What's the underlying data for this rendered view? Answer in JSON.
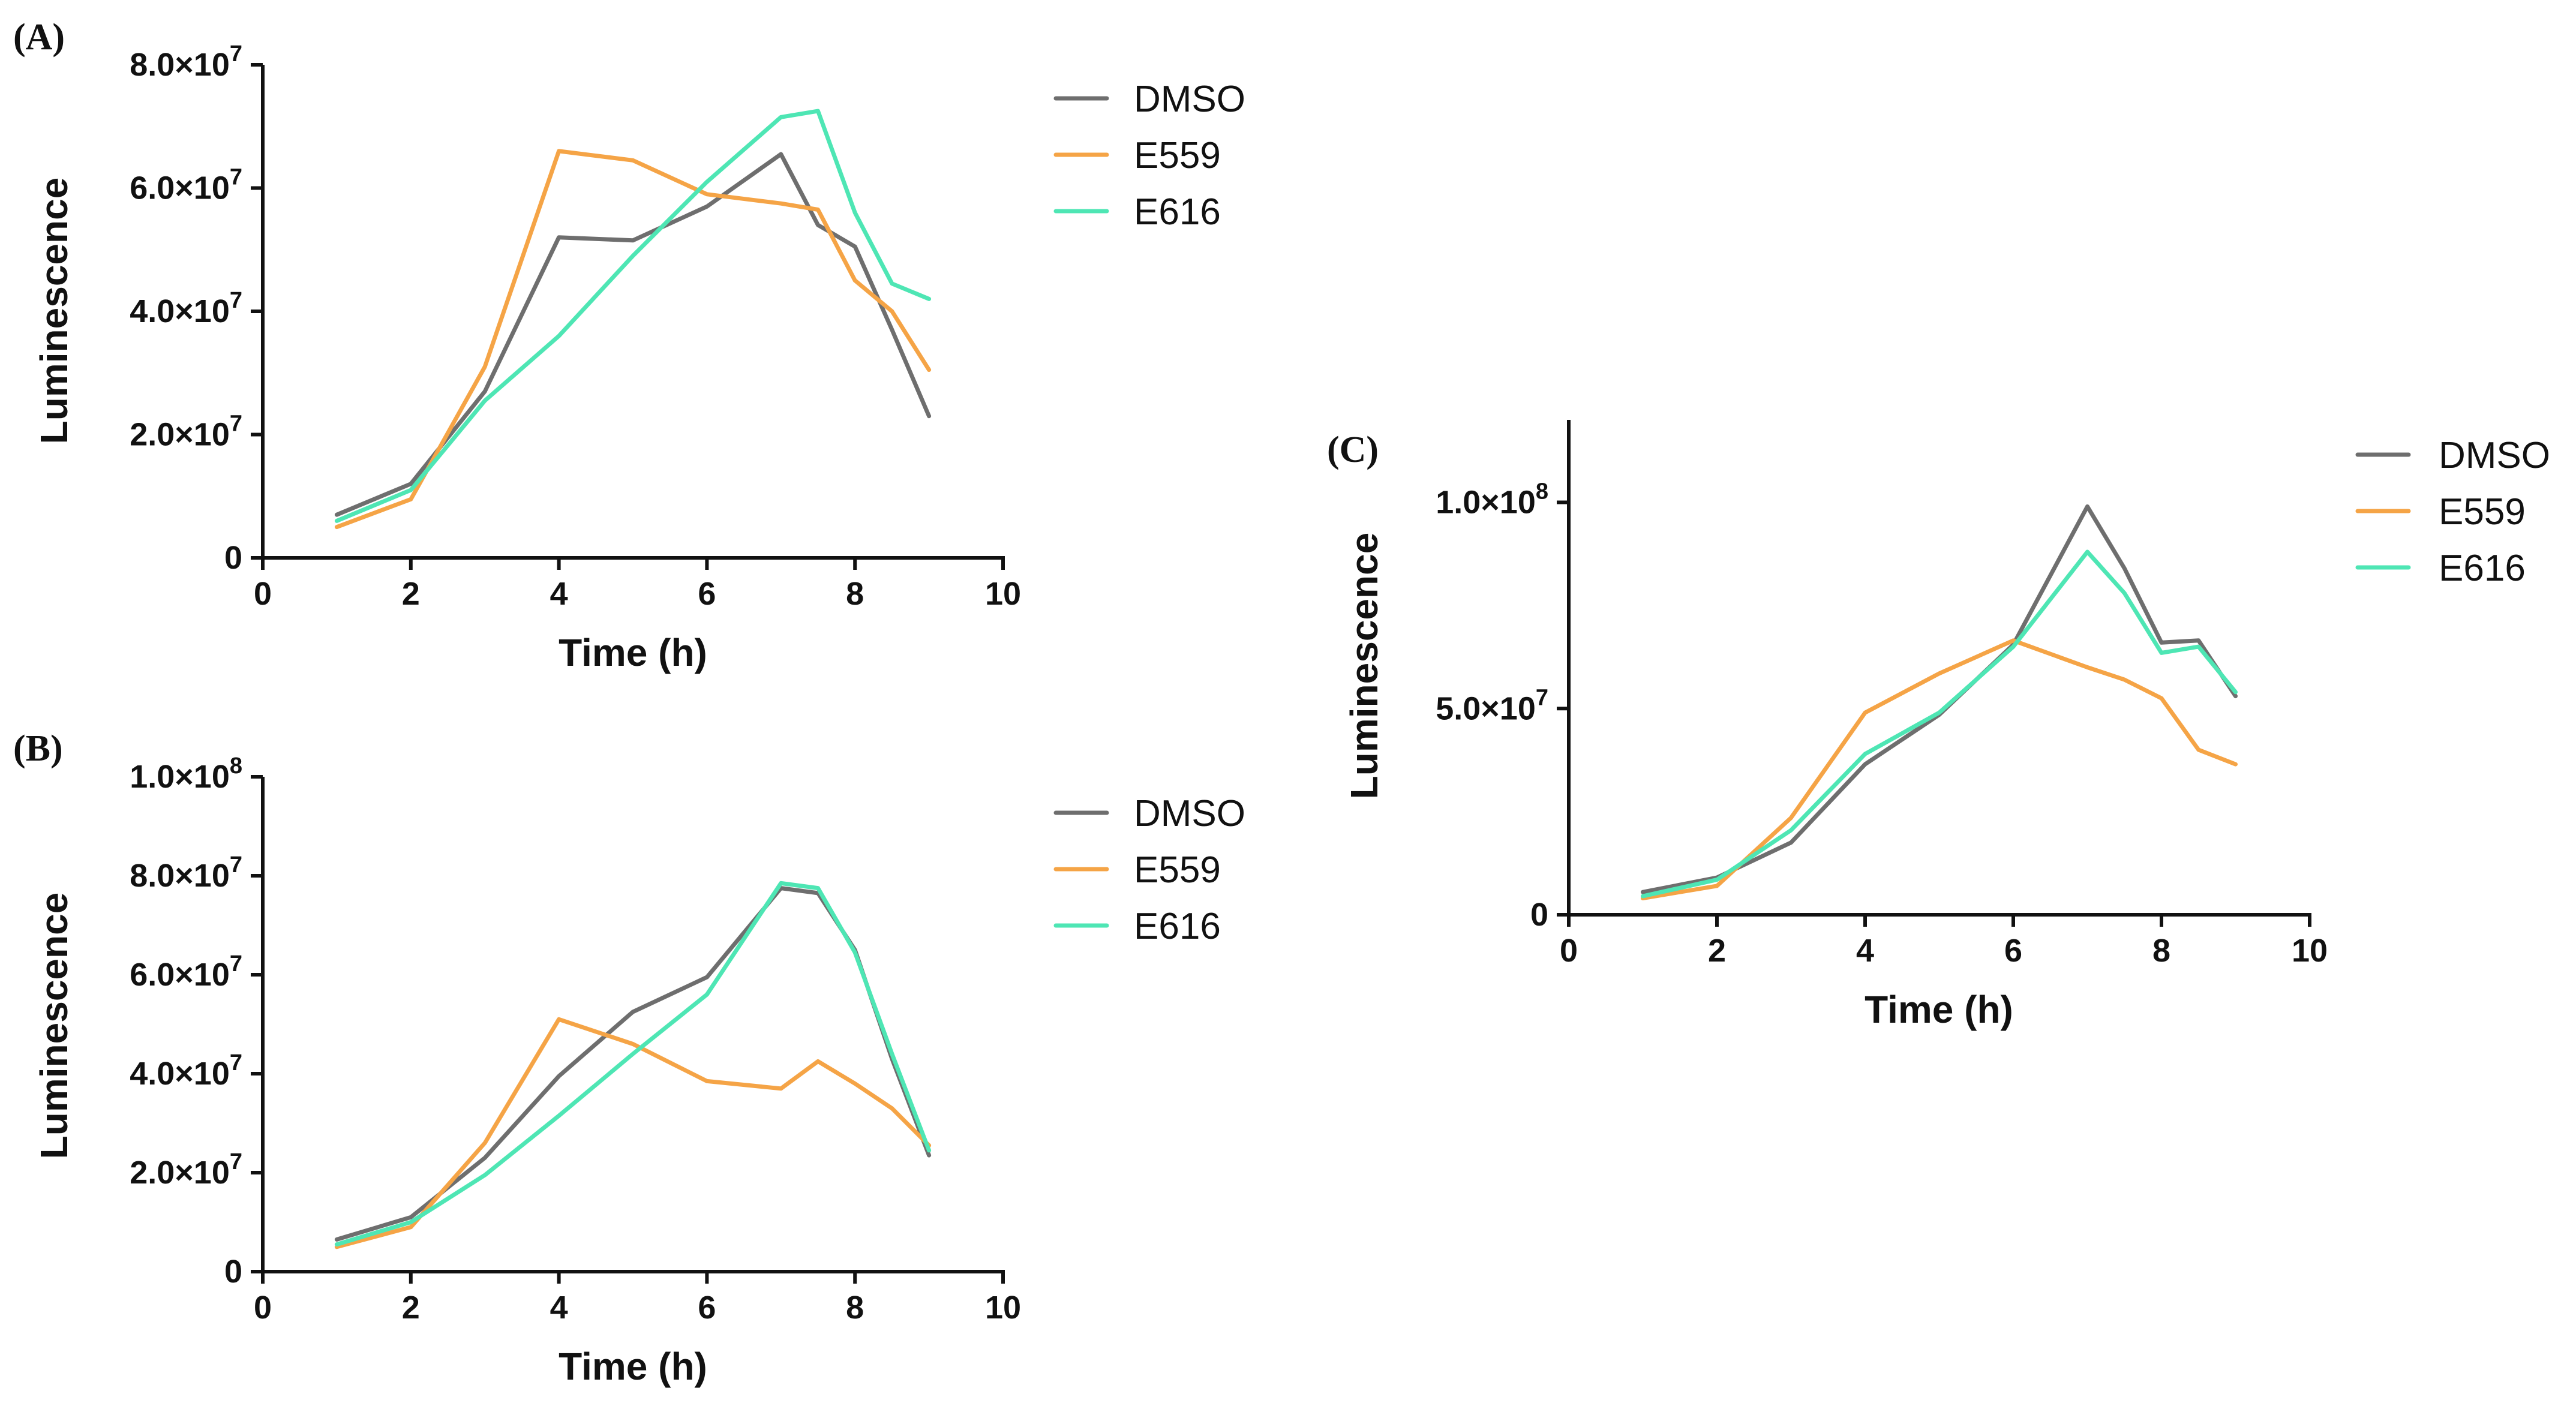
{
  "colors": {
    "DMSO": "#6e6e6e",
    "E559": "#f5a446",
    "E616": "#4ee6b4",
    "axis": "#111111"
  },
  "chart_data": [
    {
      "panel": "(A)",
      "type": "line",
      "xlabel": "Time (h)",
      "ylabel": "Luminescence",
      "xlim": [
        0,
        10
      ],
      "ylim": [
        0,
        80000000
      ],
      "xticks": [
        0,
        2,
        4,
        6,
        8,
        10
      ],
      "yticks": [
        {
          "value": 0,
          "mantissa": "0",
          "exp": ""
        },
        {
          "value": 20000000,
          "mantissa": "2.0×10",
          "exp": "7"
        },
        {
          "value": 40000000,
          "mantissa": "4.0×10",
          "exp": "7"
        },
        {
          "value": 60000000,
          "mantissa": "6.0×10",
          "exp": "7"
        },
        {
          "value": 80000000,
          "mantissa": "8.0×10",
          "exp": "7"
        }
      ],
      "legend_position": "top-right",
      "series": [
        {
          "name": "DMSO",
          "x": [
            1,
            2,
            3,
            4,
            5,
            6,
            7,
            7.5,
            8,
            8.5,
            9
          ],
          "y": [
            7000000,
            12000000,
            27000000,
            52000000,
            51500000,
            57000000,
            65500000,
            54000000,
            50500000,
            37000000,
            23000000
          ]
        },
        {
          "name": "E559",
          "x": [
            1,
            2,
            3,
            4,
            5,
            6,
            7,
            7.5,
            8,
            8.5,
            9
          ],
          "y": [
            5000000,
            9500000,
            31000000,
            66000000,
            64500000,
            59000000,
            57500000,
            56500000,
            45000000,
            40000000,
            30500000
          ]
        },
        {
          "name": "E616",
          "x": [
            1,
            2,
            3,
            4,
            5,
            6,
            7,
            7.5,
            8,
            8.5,
            9
          ],
          "y": [
            6000000,
            11000000,
            25500000,
            36000000,
            49000000,
            61000000,
            71500000,
            72500000,
            56000000,
            44500000,
            42000000
          ]
        }
      ]
    },
    {
      "panel": "(B)",
      "type": "line",
      "xlabel": "Time (h)",
      "ylabel": "Luminescence",
      "xlim": [
        0,
        10
      ],
      "ylim": [
        0,
        100000000
      ],
      "xticks": [
        0,
        2,
        4,
        6,
        8,
        10
      ],
      "yticks": [
        {
          "value": 0,
          "mantissa": "0",
          "exp": ""
        },
        {
          "value": 20000000,
          "mantissa": "2.0×10",
          "exp": "7"
        },
        {
          "value": 40000000,
          "mantissa": "4.0×10",
          "exp": "7"
        },
        {
          "value": 60000000,
          "mantissa": "6.0×10",
          "exp": "7"
        },
        {
          "value": 80000000,
          "mantissa": "8.0×10",
          "exp": "7"
        },
        {
          "value": 100000000,
          "mantissa": "1.0×10",
          "exp": "8"
        }
      ],
      "legend_position": "top-right",
      "series": [
        {
          "name": "DMSO",
          "x": [
            1,
            2,
            3,
            4,
            5,
            6,
            7,
            7.5,
            8,
            8.5,
            9
          ],
          "y": [
            6500000,
            11000000,
            23000000,
            39500000,
            52500000,
            59500000,
            77500000,
            76500000,
            65000000,
            43000000,
            23500000
          ]
        },
        {
          "name": "E559",
          "x": [
            1,
            2,
            3,
            4,
            5,
            6,
            7,
            7.5,
            8,
            8.5,
            9
          ],
          "y": [
            5000000,
            9000000,
            26000000,
            51000000,
            46000000,
            38500000,
            37000000,
            42500000,
            38000000,
            33000000,
            25500000
          ]
        },
        {
          "name": "E616",
          "x": [
            1,
            2,
            3,
            4,
            5,
            6,
            7,
            7.5,
            8,
            8.5,
            9
          ],
          "y": [
            5500000,
            10000000,
            19500000,
            31500000,
            44000000,
            56000000,
            78500000,
            77500000,
            64500000,
            44000000,
            24500000
          ]
        }
      ]
    },
    {
      "panel": "(C)",
      "type": "line",
      "xlabel": "Time (h)",
      "ylabel": "Luminescence",
      "xlim": [
        0,
        10
      ],
      "ylim": [
        0,
        120000000
      ],
      "xticks": [
        0,
        2,
        4,
        6,
        8,
        10
      ],
      "yticks": [
        {
          "value": 0,
          "mantissa": "0",
          "exp": ""
        },
        {
          "value": 50000000,
          "mantissa": "5.0×10",
          "exp": "7"
        },
        {
          "value": 100000000,
          "mantissa": "1.0×10",
          "exp": "8"
        }
      ],
      "legend_position": "top-right",
      "series": [
        {
          "name": "DMSO",
          "x": [
            1,
            2,
            3,
            4,
            5,
            6,
            7,
            7.5,
            8,
            8.5,
            9
          ],
          "y": [
            5500000,
            9000000,
            17500000,
            36500000,
            48500000,
            65500000,
            99000000,
            84000000,
            66000000,
            66500000,
            53000000
          ]
        },
        {
          "name": "E559",
          "x": [
            1,
            2,
            3,
            4,
            5,
            6,
            7,
            7.5,
            8,
            8.5,
            9
          ],
          "y": [
            4000000,
            7000000,
            23500000,
            49000000,
            58500000,
            66500000,
            60000000,
            57000000,
            52500000,
            40000000,
            36500000
          ]
        },
        {
          "name": "E616",
          "x": [
            1,
            2,
            3,
            4,
            5,
            6,
            7,
            7.5,
            8,
            8.5,
            9
          ],
          "y": [
            4500000,
            8500000,
            20500000,
            39000000,
            49000000,
            65000000,
            88000000,
            78000000,
            63500000,
            65000000,
            54000000
          ]
        }
      ]
    }
  ]
}
